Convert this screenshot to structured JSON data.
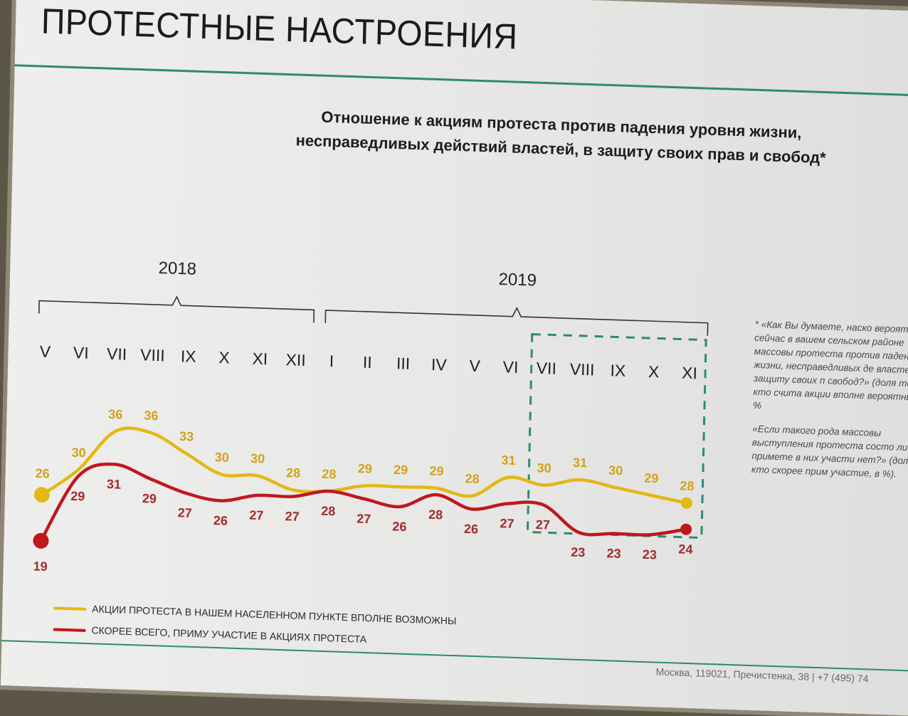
{
  "slide": {
    "title": "ПРОТЕСТНЫЕ НАСТРОЕНИЯ",
    "subtitle_line1": "Отношение к акциям протеста против падения уровня жизни,",
    "subtitle_line2": "несправедливых действий властей, в защиту своих прав и свобод*"
  },
  "chart_data": {
    "type": "line",
    "years": [
      {
        "label": "2018",
        "from_index": 0,
        "to_index": 7
      },
      {
        "label": "2019",
        "from_index": 8,
        "to_index": 18
      }
    ],
    "categories": [
      "V",
      "VI",
      "VII",
      "VIII",
      "IX",
      "X",
      "XI",
      "XII",
      "I",
      "II",
      "III",
      "IV",
      "V",
      "VI",
      "VII",
      "VIII",
      "IX",
      "X",
      "XI"
    ],
    "highlight_range": [
      14,
      18
    ],
    "series": [
      {
        "name": "АКЦИИ ПРОТЕСТА В НАШЕМ НАСЕЛЕННОМ ПУНКТЕ ВПОЛНЕ ВОЗМОЖНЫ",
        "color": "#e3b814",
        "label_color": "#d2a21a",
        "values": [
          26,
          30,
          36,
          36,
          33,
          30,
          30,
          28,
          28,
          29,
          29,
          29,
          28,
          31,
          30,
          31,
          30,
          29,
          28
        ]
      },
      {
        "name": "СКОРЕЕ ВСЕГО, ПРИМУ УЧАСТИЕ В АКЦИЯХ ПРОТЕСТА",
        "color": "#c0171d",
        "label_color": "#a32a2c",
        "values": [
          19,
          29,
          31,
          29,
          27,
          26,
          27,
          27,
          28,
          27,
          26,
          28,
          26,
          27,
          27,
          23,
          23,
          23,
          24
        ]
      }
    ]
  },
  "footnote": {
    "q1": "* «Как Вы думаете, наско вероятны сейчас в вашем сельском районе массовы протеста против падения у жизни, несправедливых де властей, в защиту своих п свобод?»",
    "q1_note": "(доля тех, кто счита акции вполне вероятными, в %",
    "q2": "«Если такого рода массовы выступления протеста состо лично примете в них участи нет?»",
    "q2_note": "(доля тех, кто скорее прим участие, в %)."
  },
  "footer": "Москва, 119021, Пречистенка, 38 | +7 (495) 74"
}
